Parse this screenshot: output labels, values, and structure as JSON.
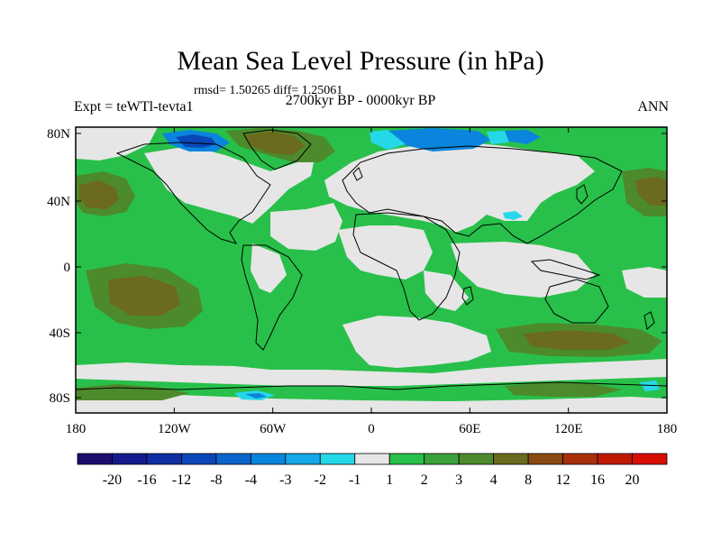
{
  "header": {
    "title": "Mean Sea Level Pressure (in hPa)",
    "stats": "rmsd= 1.50265 diff= 1.25061",
    "period": "2700kyr BP - 0000kyr BP",
    "experiment": "Expt = teWTl-tevta1",
    "season": "ANN"
  },
  "map": {
    "lat_ticks": [
      "80N",
      "40N",
      "0",
      "40S",
      "80S"
    ],
    "lon_ticks": [
      "180",
      "120W",
      "60W",
      "0",
      "60E",
      "120E",
      "180"
    ]
  },
  "colorbar": {
    "labels": [
      "-20",
      "-16",
      "-12",
      "-8",
      "-4",
      "-3",
      "-2",
      "-1",
      "1",
      "2",
      "3",
      "4",
      "8",
      "12",
      "16",
      "20"
    ],
    "colors": [
      "#1a0d6e",
      "#141a8c",
      "#0f2ea3",
      "#0a47b8",
      "#0a64cc",
      "#0a85dd",
      "#14a8e8",
      "#25d8e8",
      "#e6e6e6",
      "#28c04a",
      "#3aa23a",
      "#4d8a2c",
      "#6b6a1e",
      "#8a4a12",
      "#a8300a",
      "#c01a05",
      "#d80e05"
    ]
  },
  "colors": {
    "white_band": "#e6e6e6",
    "green_band": "#28c04a",
    "darkgreen_band": "#4d8a2c",
    "olive_band": "#6b6a1e",
    "blue_band": "#0a85dd",
    "cyan_band": "#25d8e8",
    "darkblue_band": "#0a47b8"
  }
}
